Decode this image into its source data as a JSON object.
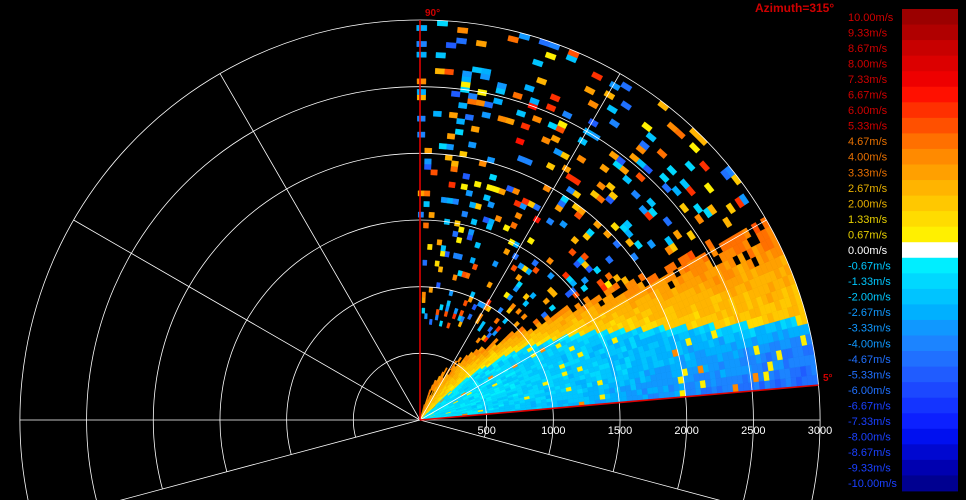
{
  "title": "Azimuth=315°",
  "colors": {
    "background": "#000000",
    "grid": "#ffffff",
    "sweep_edge": "#e00000",
    "label_red": "#d00000",
    "range_label": "#ffffff"
  },
  "chart_data": {
    "type": "heatmap",
    "projection": "polar-sector",
    "title": "Azimuth=315°",
    "elevation_start_label": "5°",
    "elevation_end_label": "90°",
    "elevation_range_deg": [
      5,
      90
    ],
    "range_ticks": [
      "500",
      "1000",
      "1500",
      "2000",
      "2500",
      "3000"
    ],
    "range_tick_values_m": [
      500,
      1000,
      1500,
      2000,
      2500,
      3000
    ],
    "max_range_m": 3000,
    "grid": true,
    "grid_rings_m": [
      500,
      1000,
      1500,
      2000,
      2500,
      3000
    ],
    "grid_spokes_deg": [
      -15,
      0,
      30,
      60,
      90,
      120,
      150,
      180,
      195
    ],
    "legend": {
      "placement": "right",
      "unit": "m/s",
      "labels": [
        "10.00m/s",
        "9.33m/s",
        "8.67m/s",
        "8.00m/s",
        "7.33m/s",
        "6.67m/s",
        "6.00m/s",
        "5.33m/s",
        "4.67m/s",
        "4.00m/s",
        "3.33m/s",
        "2.67m/s",
        "2.00m/s",
        "1.33m/s",
        "0.67m/s",
        "0.00m/s",
        "-0.67m/s",
        "-1.33m/s",
        "-2.00m/s",
        "-2.67m/s",
        "-3.33m/s",
        "-4.00m/s",
        "-4.67m/s",
        "-5.33m/s",
        "-6.00m/s",
        "-6.67m/s",
        "-7.33m/s",
        "-8.00m/s",
        "-8.67m/s",
        "-9.33m/s",
        "-10.00m/s"
      ],
      "colors": [
        "#9b0000",
        "#b00000",
        "#c80000",
        "#dc0000",
        "#ee0000",
        "#ff1000",
        "#ff3000",
        "#ff5000",
        "#ff7000",
        "#ff8a00",
        "#ffa000",
        "#ffb400",
        "#ffc800",
        "#ffdc00",
        "#fff000",
        "#ffffff",
        "#00eeff",
        "#00d8ff",
        "#00c4ff",
        "#00b0ff",
        "#1098ff",
        "#1c84ff",
        "#2070ff",
        "#205cff",
        "#1c48ff",
        "#1434ff",
        "#0c20ff",
        "#0010f0",
        "#0008d0",
        "#0000b0",
        "#000090"
      ],
      "label_colors": [
        "#d00000",
        "#d00000",
        "#d00000",
        "#d00000",
        "#d00000",
        "#d00000",
        "#d00000",
        "#d00000",
        "#e87000",
        "#e87000",
        "#e87000",
        "#e8b000",
        "#e8b000",
        "#e8d000",
        "#e8d000",
        "#ffffff",
        "#00c8ff",
        "#00c8ff",
        "#00c8ff",
        "#1098ff",
        "#1098ff",
        "#1098ff",
        "#2070ff",
        "#2070ff",
        "#2070ff",
        "#1a40ff",
        "#1a40ff",
        "#1a40ff",
        "#1a40ff",
        "#1a40ff",
        "#1a40ff"
      ]
    }
  }
}
